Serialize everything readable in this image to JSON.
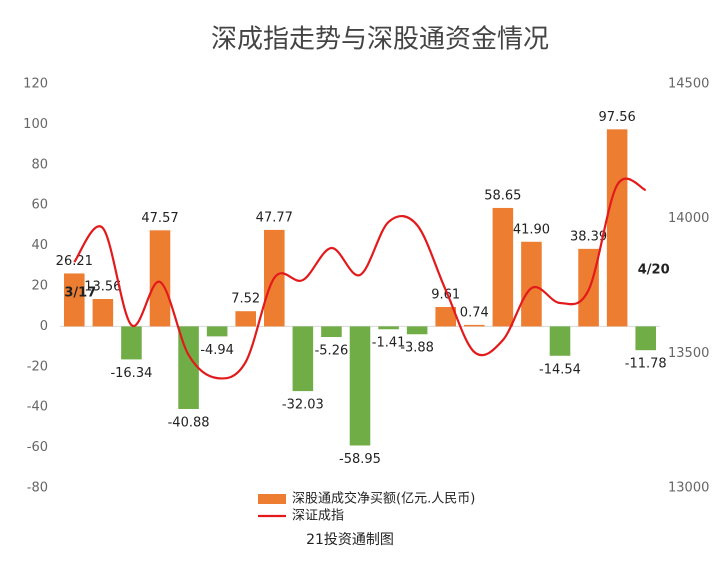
{
  "chart_data": {
    "type": "bar_line",
    "title": "深成指走势与深股通资金情况",
    "source": "21投资通制图",
    "categories": [
      "3/17",
      null,
      null,
      null,
      null,
      null,
      null,
      null,
      null,
      null,
      null,
      null,
      null,
      null,
      null,
      null,
      null,
      null,
      null,
      null,
      "4/20"
    ],
    "series": [
      {
        "name": "深股通成交净买额(亿元.人民币)",
        "color": "#ed7d31",
        "negative_color": "#70ad47",
        "values": [
          26.21,
          13.56,
          -16.34,
          47.57,
          -40.88,
          -4.94,
          7.52,
          47.77,
          -32.03,
          -5.26,
          -58.95,
          -1.41,
          -3.88,
          9.61,
          0.74,
          58.65,
          41.9,
          -14.54,
          38.39,
          97.56,
          -11.78
        ],
        "value_labels": [
          "26.21",
          "13.56",
          "-16.34",
          "47.57",
          "-40.88",
          "-4.94",
          "7.52",
          "47.77",
          "-32.03",
          "-5.26",
          "-58.95",
          "-1.41",
          "-3.88",
          "9.61",
          "0.74",
          "58.65",
          "41.90",
          "-14.54",
          "38.39",
          "97.56",
          "-11.78"
        ]
      },
      {
        "name": "深证成指",
        "color": "#e31a1c",
        "axis": "y2",
        "values": [
          13839,
          13965,
          13605,
          13765,
          13494,
          13408,
          13468,
          13780,
          13772,
          13891,
          13791,
          13988,
          13976,
          13735,
          13505,
          13549,
          13742,
          13687,
          13735,
          14125,
          14106
        ]
      }
    ],
    "ylim": [
      -80,
      120
    ],
    "yticks": [
      -80,
      -60,
      -40,
      -20,
      0,
      20,
      40,
      60,
      80,
      100,
      120
    ],
    "y2lim": [
      13000,
      14500
    ],
    "y2ticks": [
      13000,
      13500,
      14000,
      14500
    ],
    "grid": false,
    "legend": "bottom"
  }
}
